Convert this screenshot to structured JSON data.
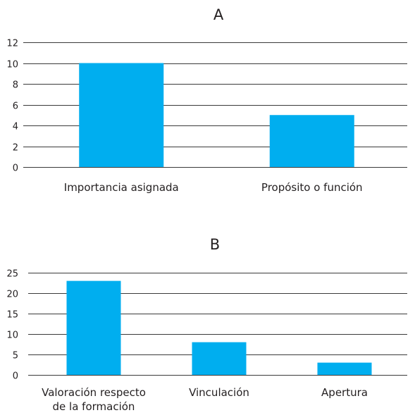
{
  "chart_data": [
    {
      "type": "bar",
      "title": "A",
      "categories": [
        "Importancia asignada",
        "Propósito o función"
      ],
      "values": [
        10,
        5
      ],
      "ylim": [
        0,
        12
      ],
      "yticks": [
        0,
        2,
        4,
        6,
        8,
        10,
        12
      ],
      "grid": true,
      "bar_color": "#00aeef"
    },
    {
      "type": "bar",
      "title": "B",
      "categories": [
        [
          "Valoración respecto",
          "de la formación"
        ],
        [
          "Vinculación"
        ],
        [
          "Apertura"
        ]
      ],
      "values": [
        23,
        8,
        3
      ],
      "ylim": [
        0,
        25
      ],
      "yticks": [
        0,
        5,
        10,
        15,
        20,
        25
      ],
      "grid": true,
      "bar_color": "#00aeef"
    }
  ]
}
